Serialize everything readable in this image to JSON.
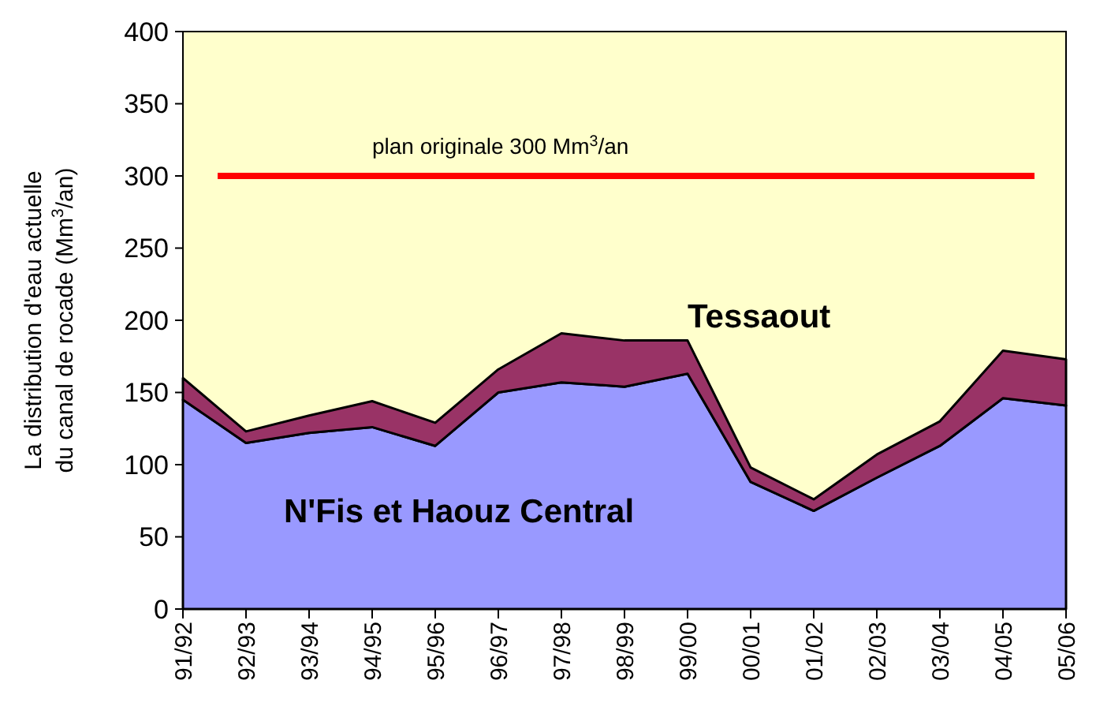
{
  "chart_data": {
    "type": "area",
    "stacked": true,
    "grid": false,
    "ylabel": "La distribution d'eau actuelle du canal de rocade (Mm$^{3}$/an)",
    "categories": [
      "91/92",
      "92/93",
      "93/94",
      "94/95",
      "95/96",
      "96/97",
      "97/98",
      "98/99",
      "99/00",
      "00/01",
      "01/02",
      "02/03",
      "03/04",
      "04/05",
      "05/06"
    ],
    "series": [
      {
        "name": "N'Fis et Haouz Central",
        "color": "#9999ff",
        "values": [
          145,
          115,
          122,
          126,
          113,
          150,
          157,
          154,
          163,
          88,
          68,
          91,
          113,
          146,
          141
        ]
      },
      {
        "name": "Tessaout",
        "color": "#993366",
        "values": [
          15,
          8,
          12,
          18,
          16,
          16,
          34,
          32,
          23,
          10,
          8,
          16,
          17,
          33,
          32
        ]
      }
    ],
    "ylim": [
      0,
      400
    ],
    "yticks": [
      0,
      50,
      100,
      150,
      200,
      250,
      300,
      350,
      400
    ],
    "ref_lines": [
      {
        "axis": "y",
        "value": 300,
        "label": "plan originale 300 Mm$^{3}$/an",
        "color": "#ff0000"
      }
    ]
  }
}
